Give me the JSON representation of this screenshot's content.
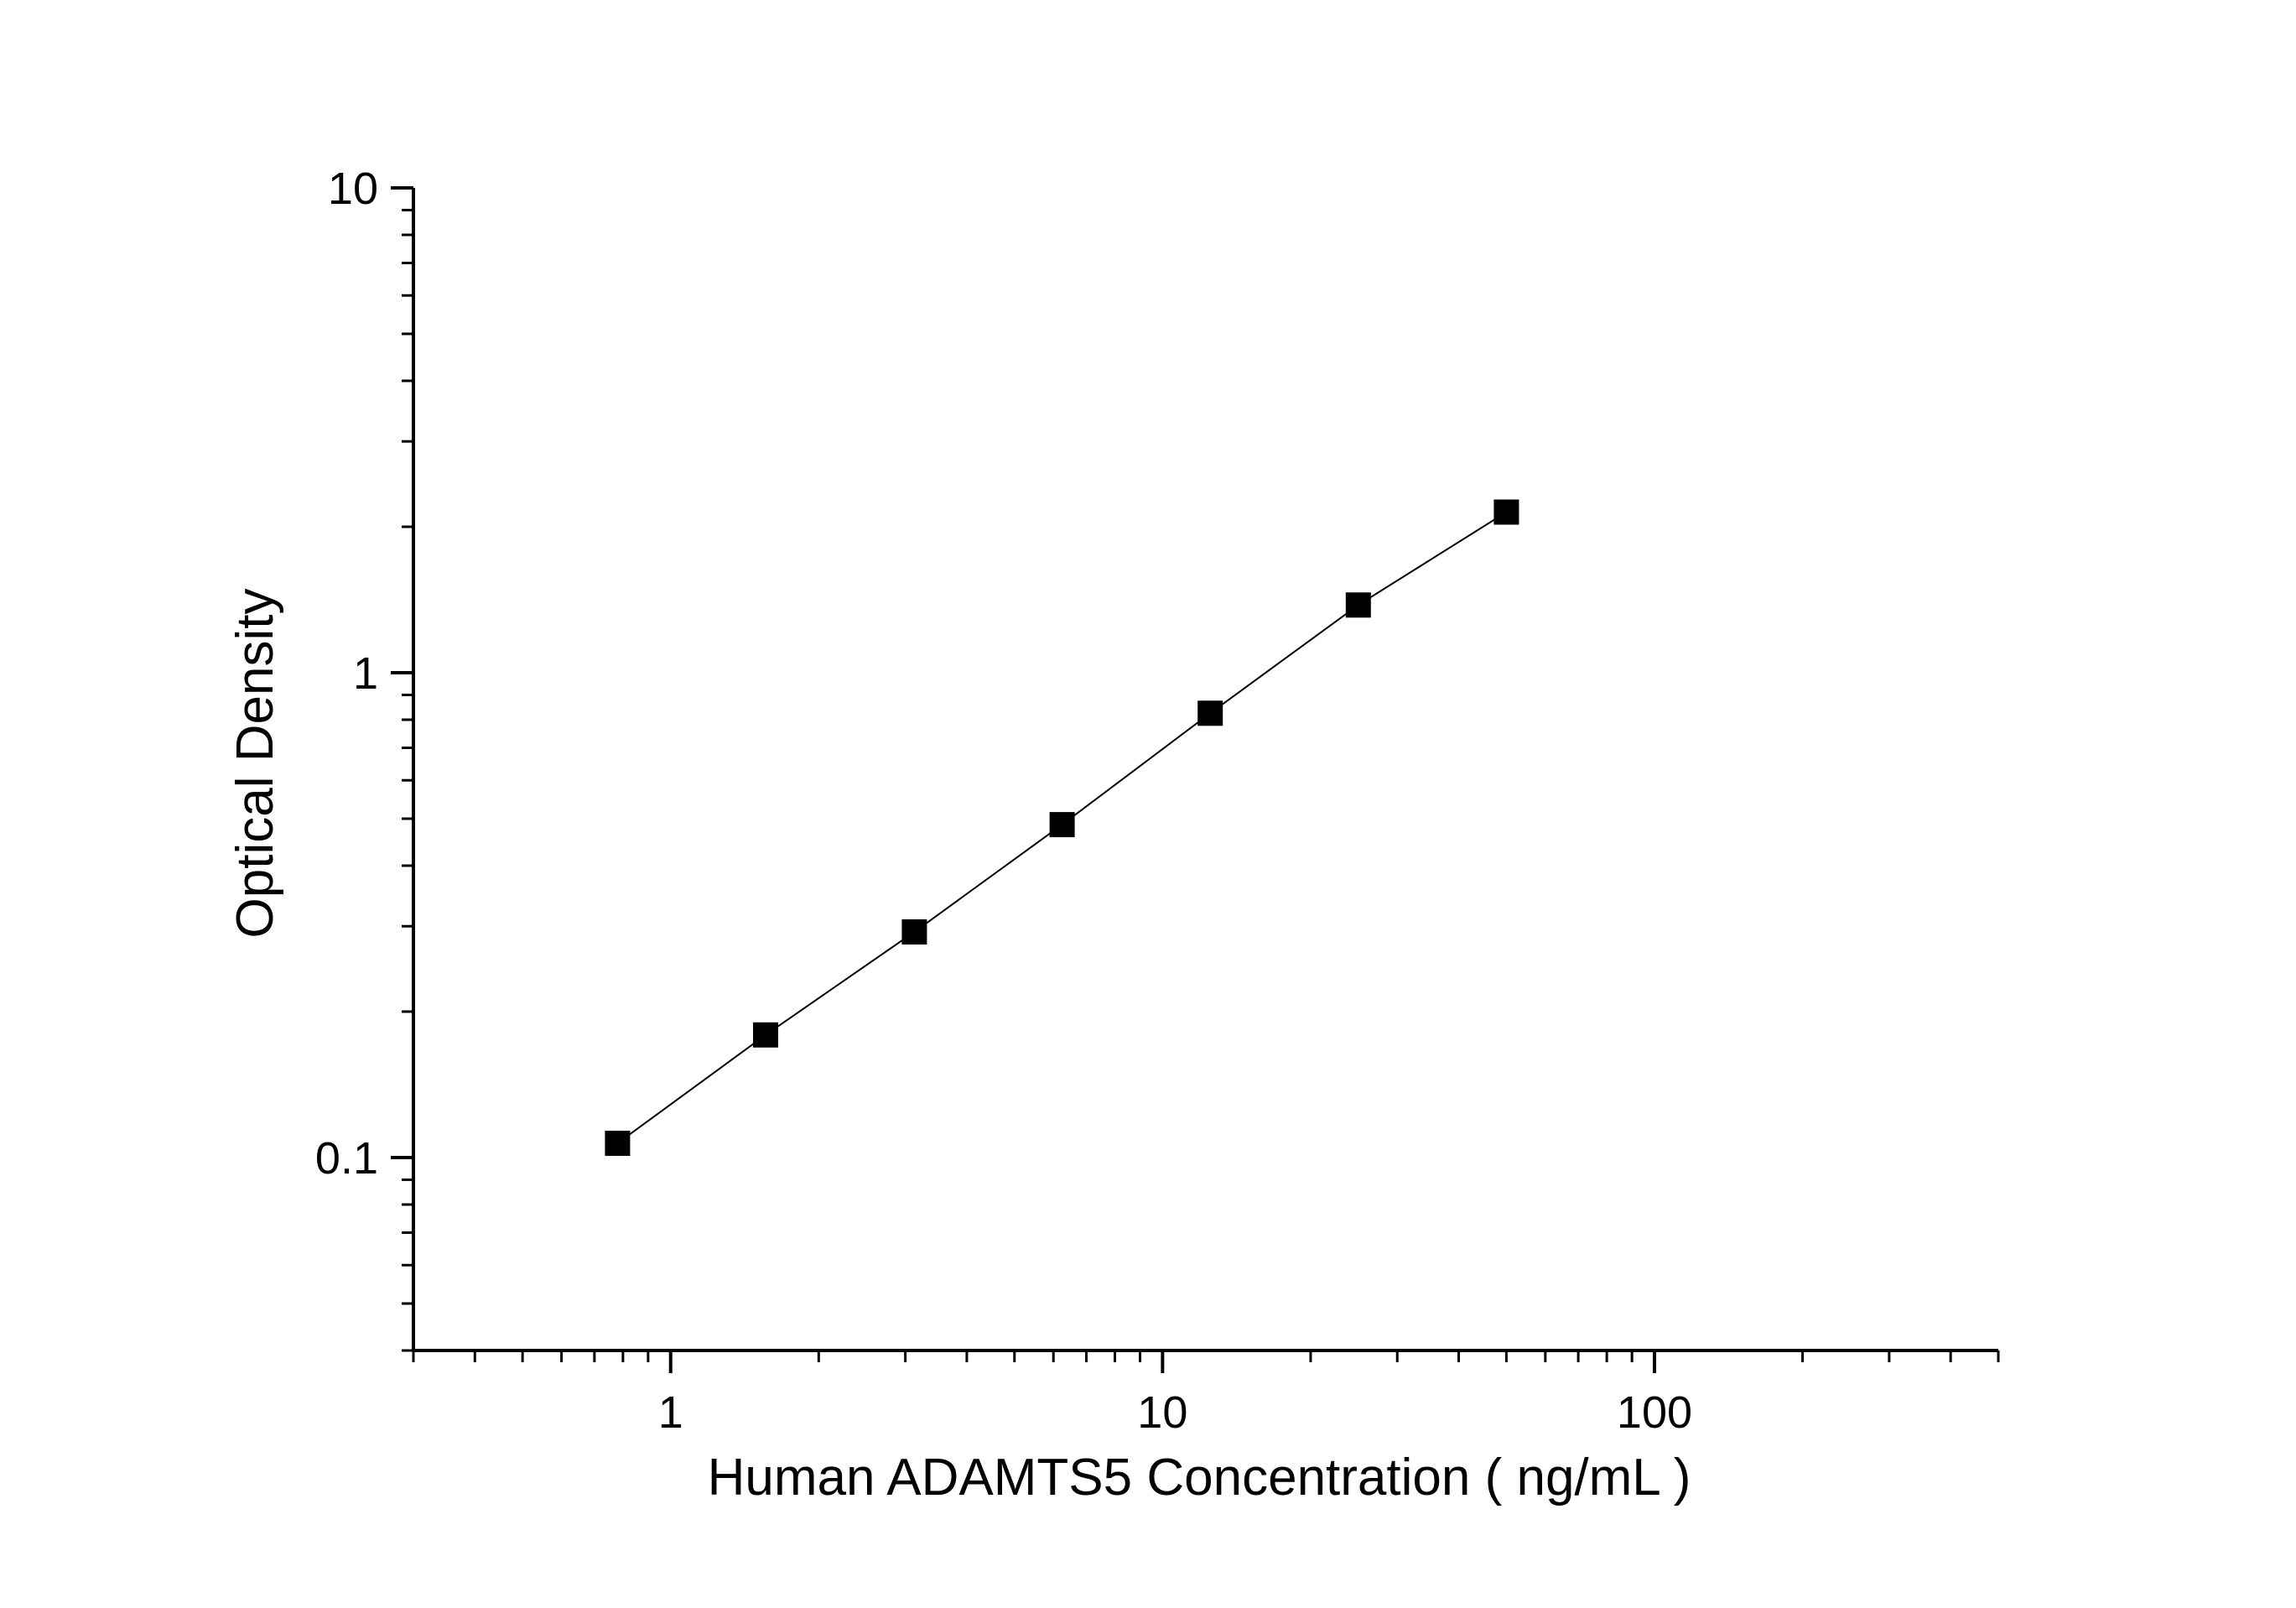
{
  "chart_data": {
    "type": "scatter",
    "title": "",
    "xlabel": "Human ADAMTS5 Concentration ( ng/mL )",
    "ylabel": "Optical Density",
    "x_scale": "log",
    "y_scale": "log",
    "xlim": [
      0.3,
      500
    ],
    "ylim": [
      0.04,
      10
    ],
    "x_ticks": [
      {
        "value": 1,
        "label": "1"
      },
      {
        "value": 10,
        "label": "10"
      },
      {
        "value": 100,
        "label": "100"
      }
    ],
    "y_ticks": [
      {
        "value": 10,
        "label": "10"
      },
      {
        "value": 1,
        "label": "1"
      },
      {
        "value": 0.1,
        "label": "0.1"
      }
    ],
    "grid": false,
    "legend": "none",
    "series": [
      {
        "marker": "square",
        "line": true,
        "color": "#000000",
        "x": [
          0.78,
          1.56,
          3.13,
          6.25,
          12.5,
          25,
          50
        ],
        "y": [
          0.107,
          0.179,
          0.292,
          0.486,
          0.825,
          1.379,
          2.144
        ]
      }
    ]
  }
}
